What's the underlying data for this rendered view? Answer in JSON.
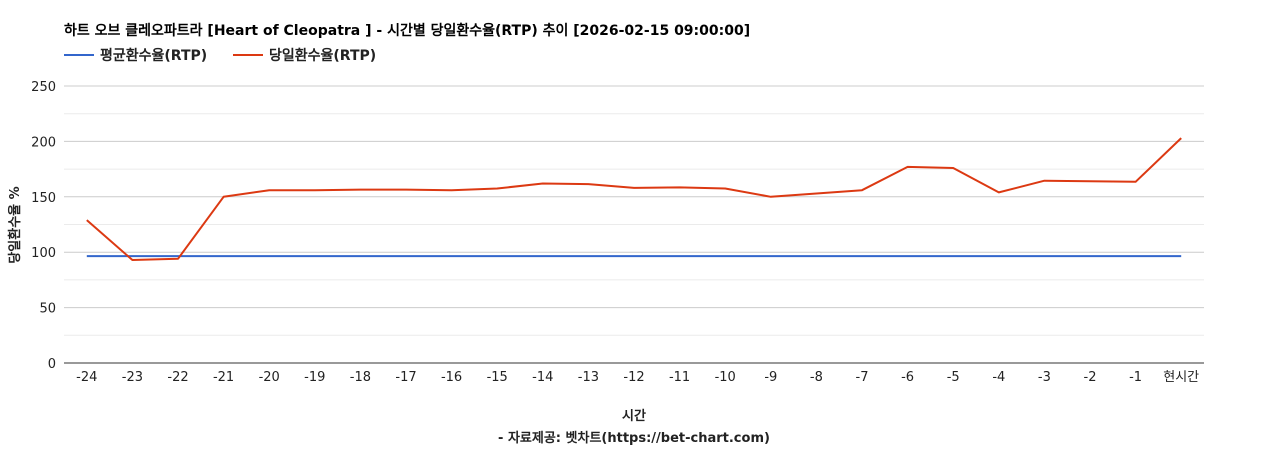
{
  "chart_data": {
    "type": "line",
    "title": "하트 오브 클레오파트라 [Heart of Cleopatra ] - 시간별 당일환수율(RTP) 추이 [2026-02-15 09:00:00]",
    "xlabel": "시간",
    "xlabel_sub": "- 자료제공: 벳차트(https://bet-chart.com)",
    "ylabel": "당일환수율 %",
    "ylim": [
      0,
      250
    ],
    "yticks": [
      "0",
      "50",
      "100",
      "150",
      "200",
      "250"
    ],
    "grid": true,
    "legend_position": "top-left",
    "categories": [
      "-24",
      "-23",
      "-22",
      "-21",
      "-20",
      "-19",
      "-18",
      "-17",
      "-16",
      "-15",
      "-14",
      "-13",
      "-12",
      "-11",
      "-10",
      "-9",
      "-8",
      "-7",
      "-6",
      "-5",
      "-4",
      "-3",
      "-2",
      "-1",
      "현시간"
    ],
    "series": [
      {
        "name": "평균환수율(RTP)",
        "color": "#3366cc",
        "values": [
          96.5,
          96.5,
          96.5,
          96.5,
          96.5,
          96.5,
          96.5,
          96.5,
          96.5,
          96.5,
          96.5,
          96.5,
          96.5,
          96.5,
          96.5,
          96.5,
          96.5,
          96.5,
          96.5,
          96.5,
          96.5,
          96.5,
          96.5,
          96.5,
          96.5
        ]
      },
      {
        "name": "당일환수율(RTP)",
        "color": "#dc3912",
        "values": [
          129,
          93,
          94,
          150,
          156,
          156,
          156.5,
          156.5,
          156,
          157.5,
          162,
          161.5,
          158,
          158.5,
          157.5,
          150,
          153,
          156,
          177,
          176,
          154,
          164.5,
          164,
          163.5,
          203
        ]
      }
    ]
  }
}
